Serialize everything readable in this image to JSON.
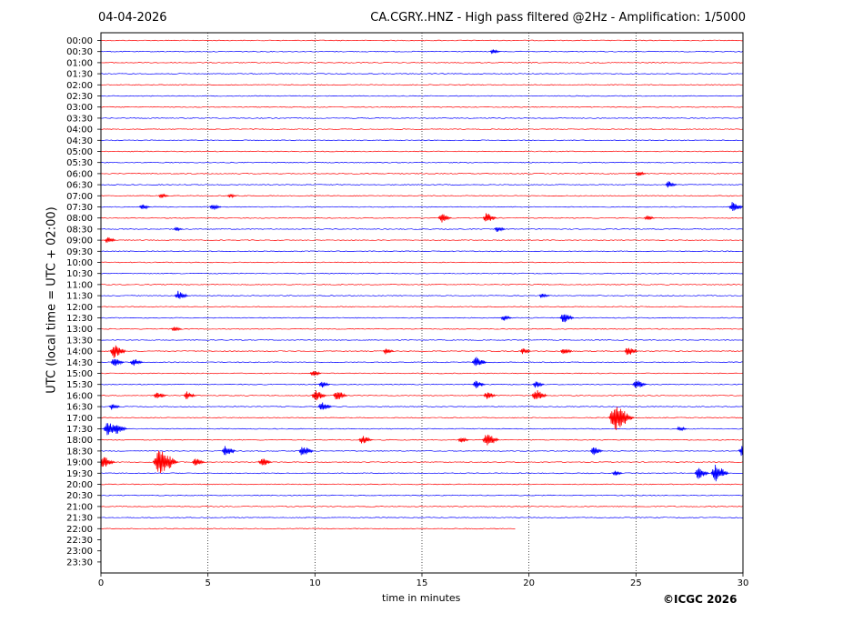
{
  "header": {
    "date": "04-04-2026",
    "title": "CA.CGRY..HNZ - High pass filtered @2Hz - Amplification: 1/5000"
  },
  "footer": {
    "copyright": "©ICGC 2026"
  },
  "colors": {
    "trace_a": "#ff0000",
    "trace_b": "#0000ff",
    "grid": "#000000"
  },
  "chart_data": {
    "type": "line",
    "title": "CA.CGRY..HNZ - High pass filtered @2Hz - Amplification: 1/5000",
    "xlabel": "time in minutes",
    "ylabel": "UTC (local time = UTC + 02:00)",
    "xlim": [
      0,
      30
    ],
    "x_ticks": [
      "0",
      "5",
      "10",
      "15",
      "20",
      "25",
      "30"
    ],
    "vertical_gridlines_at": [
      5,
      10,
      15,
      20,
      25
    ],
    "rows": [
      "00:00",
      "00:30",
      "01:00",
      "01:30",
      "02:00",
      "02:30",
      "03:00",
      "03:30",
      "04:00",
      "04:30",
      "05:00",
      "05:30",
      "06:00",
      "06:30",
      "07:00",
      "07:30",
      "08:00",
      "08:30",
      "09:00",
      "09:30",
      "10:00",
      "10:30",
      "11:00",
      "11:30",
      "12:00",
      "12:30",
      "13:00",
      "13:30",
      "14:00",
      "14:30",
      "15:00",
      "15:30",
      "16:00",
      "16:30",
      "17:00",
      "17:30",
      "18:00",
      "18:30",
      "19:00",
      "19:30",
      "20:00",
      "20:30",
      "21:00",
      "21:30",
      "22:00",
      "22:30",
      "23:00",
      "23:30"
    ],
    "recording_ends": {
      "row": "22:00",
      "minute": 19.4
    },
    "events": [
      {
        "row": "00:30",
        "minute": 18.3,
        "amp": 0.5
      },
      {
        "row": "06:00",
        "minute": 25.1,
        "amp": 0.5
      },
      {
        "row": "06:30",
        "minute": 26.5,
        "amp": 0.7
      },
      {
        "row": "07:00",
        "minute": 2.8,
        "amp": 0.5
      },
      {
        "row": "07:00",
        "minute": 6.0,
        "amp": 0.4
      },
      {
        "row": "07:30",
        "minute": 1.9,
        "amp": 0.6
      },
      {
        "row": "07:30",
        "minute": 5.2,
        "amp": 0.7
      },
      {
        "row": "07:30",
        "minute": 29.5,
        "amp": 1.0
      },
      {
        "row": "08:00",
        "minute": 15.9,
        "amp": 0.9
      },
      {
        "row": "08:00",
        "minute": 18.0,
        "amp": 1.0
      },
      {
        "row": "08:00",
        "minute": 25.5,
        "amp": 0.5
      },
      {
        "row": "08:30",
        "minute": 3.5,
        "amp": 0.4
      },
      {
        "row": "08:30",
        "minute": 18.5,
        "amp": 0.6
      },
      {
        "row": "09:00",
        "minute": 0.3,
        "amp": 0.6
      },
      {
        "row": "11:30",
        "minute": 3.6,
        "amp": 0.9
      },
      {
        "row": "11:30",
        "minute": 20.6,
        "amp": 0.5
      },
      {
        "row": "12:30",
        "minute": 18.8,
        "amp": 0.6
      },
      {
        "row": "12:30",
        "minute": 21.6,
        "amp": 1.0
      },
      {
        "row": "13:00",
        "minute": 3.4,
        "amp": 0.5
      },
      {
        "row": "14:00",
        "minute": 0.6,
        "amp": 1.3
      },
      {
        "row": "14:00",
        "minute": 13.3,
        "amp": 0.6
      },
      {
        "row": "14:00",
        "minute": 19.7,
        "amp": 0.6
      },
      {
        "row": "14:00",
        "minute": 21.6,
        "amp": 0.7
      },
      {
        "row": "14:00",
        "minute": 24.6,
        "amp": 0.9
      },
      {
        "row": "14:30",
        "minute": 0.6,
        "amp": 0.9
      },
      {
        "row": "14:30",
        "minute": 1.5,
        "amp": 0.8
      },
      {
        "row": "14:30",
        "minute": 17.5,
        "amp": 1.1
      },
      {
        "row": "15:00",
        "minute": 9.9,
        "amp": 0.6
      },
      {
        "row": "15:30",
        "minute": 10.3,
        "amp": 0.7
      },
      {
        "row": "15:30",
        "minute": 17.5,
        "amp": 0.8
      },
      {
        "row": "15:30",
        "minute": 20.3,
        "amp": 0.7
      },
      {
        "row": "15:30",
        "minute": 25.0,
        "amp": 1.0
      },
      {
        "row": "16:00",
        "minute": 2.6,
        "amp": 0.8
      },
      {
        "row": "16:00",
        "minute": 4.0,
        "amp": 0.8
      },
      {
        "row": "16:00",
        "minute": 10.0,
        "amp": 1.1
      },
      {
        "row": "16:00",
        "minute": 11.0,
        "amp": 1.0
      },
      {
        "row": "16:00",
        "minute": 18.0,
        "amp": 0.8
      },
      {
        "row": "16:00",
        "minute": 20.3,
        "amp": 1.2
      },
      {
        "row": "16:30",
        "minute": 0.5,
        "amp": 0.6
      },
      {
        "row": "16:30",
        "minute": 10.3,
        "amp": 1.0
      },
      {
        "row": "17:00",
        "minute": 24.0,
        "amp": 2.6
      },
      {
        "row": "17:30",
        "minute": 0.3,
        "amp": 1.4
      },
      {
        "row": "17:30",
        "minute": 0.7,
        "amp": 1.1
      },
      {
        "row": "17:30",
        "minute": 27.0,
        "amp": 0.5
      },
      {
        "row": "18:00",
        "minute": 12.2,
        "amp": 0.9
      },
      {
        "row": "18:00",
        "minute": 16.8,
        "amp": 0.6
      },
      {
        "row": "18:00",
        "minute": 18.0,
        "amp": 1.4
      },
      {
        "row": "18:30",
        "minute": 5.8,
        "amp": 1.0
      },
      {
        "row": "18:30",
        "minute": 9.4,
        "amp": 1.1
      },
      {
        "row": "18:30",
        "minute": 23.0,
        "amp": 0.8
      },
      {
        "row": "18:30",
        "minute": 30.0,
        "amp": 1.6
      },
      {
        "row": "19:00",
        "minute": 0.1,
        "amp": 1.2
      },
      {
        "row": "19:00",
        "minute": 2.7,
        "amp": 2.6
      },
      {
        "row": "19:00",
        "minute": 4.4,
        "amp": 0.8
      },
      {
        "row": "19:00",
        "minute": 7.5,
        "amp": 0.9
      },
      {
        "row": "19:30",
        "minute": 27.9,
        "amp": 1.1
      },
      {
        "row": "19:30",
        "minute": 28.7,
        "amp": 1.6
      },
      {
        "row": "19:30",
        "minute": 24.0,
        "amp": 0.5
      }
    ]
  }
}
